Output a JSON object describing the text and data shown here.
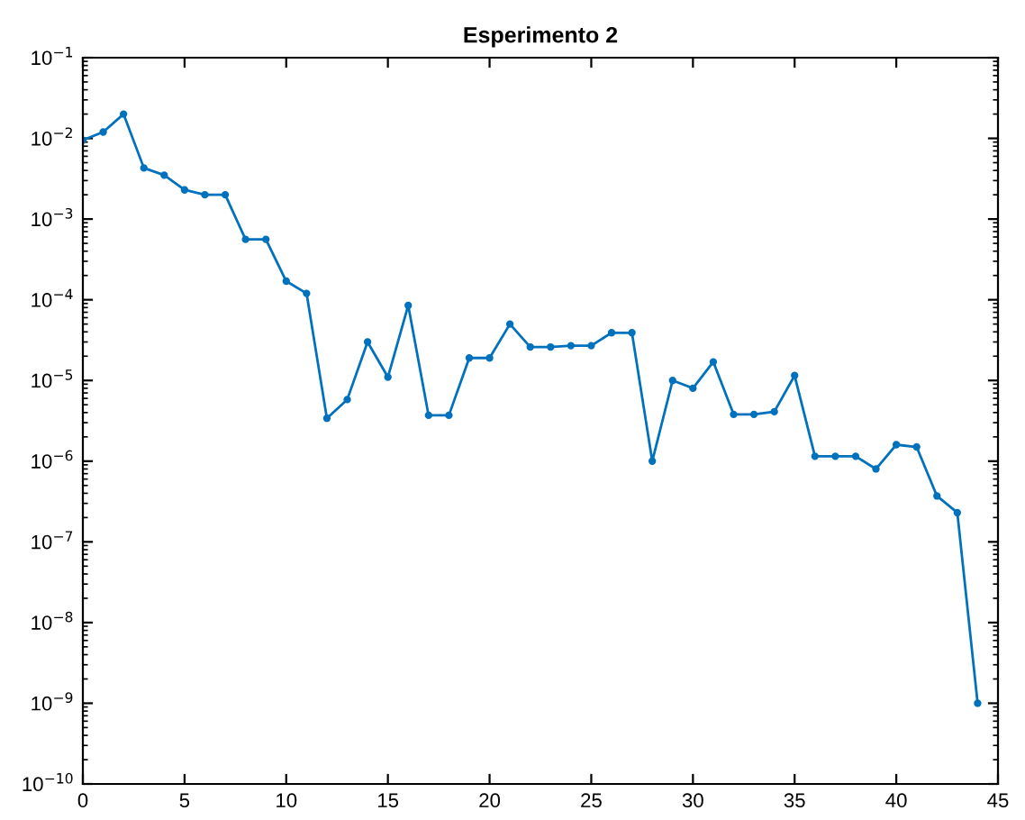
{
  "chart_data": {
    "type": "line",
    "title": "Esperimento 2",
    "x": [
      0,
      1,
      2,
      3,
      4,
      5,
      6,
      7,
      8,
      9,
      10,
      11,
      12,
      13,
      14,
      15,
      16,
      17,
      18,
      19,
      20,
      21,
      22,
      23,
      24,
      25,
      26,
      27,
      28,
      29,
      30,
      31,
      32,
      33,
      34,
      35,
      36,
      37,
      38,
      39,
      40,
      41,
      42,
      43,
      44
    ],
    "series": [
      {
        "color": "#0072bd",
        "values": [
          0.0095,
          0.012,
          0.02,
          0.0043,
          0.0035,
          0.0023,
          0.002,
          0.002,
          0.00056,
          0.00056,
          0.00017,
          0.00012,
          3.4e-06,
          5.8e-06,
          3e-05,
          1.1e-05,
          8.5e-05,
          3.7e-06,
          3.7e-06,
          1.9e-05,
          1.9e-05,
          5e-05,
          2.6e-05,
          2.6e-05,
          2.7e-05,
          2.7e-05,
          3.9e-05,
          3.9e-05,
          1e-06,
          1e-05,
          8e-06,
          1.7e-05,
          3.8e-06,
          3.8e-06,
          4.1e-06,
          1.15e-05,
          1.15e-06,
          1.15e-06,
          1.15e-06,
          8e-07,
          1.6e-06,
          1.5e-06,
          3.7e-07,
          2.3e-07,
          1e-09
        ]
      }
    ],
    "log": "y",
    "marker": "circle",
    "line_style": "solid",
    "grid": false,
    "legend": false,
    "xlim": [
      0,
      45
    ],
    "xticks": [
      0,
      5,
      10,
      15,
      20,
      25,
      30,
      35,
      40,
      45
    ],
    "ylim": [
      1e-10,
      0.1
    ],
    "yticks": [
      {
        "value": 1e-10,
        "label": "10$^{−10}$"
      },
      {
        "value": 1e-09,
        "label": "10$^{−9}$"
      },
      {
        "value": 1e-08,
        "label": "10$^{−8}$"
      },
      {
        "value": 1e-07,
        "label": "10$^{−7}$"
      },
      {
        "value": 1e-06,
        "label": "10$^{−6}$"
      },
      {
        "value": 1e-05,
        "label": "10$^{−5}$"
      },
      {
        "value": 0.0001,
        "label": "10$^{−4}$"
      },
      {
        "value": 0.001,
        "label": "10$^{−3}$"
      },
      {
        "value": 0.01,
        "label": "10$^{−2}$"
      },
      {
        "value": 0.1,
        "label": "10$^{−1}$"
      }
    ]
  }
}
